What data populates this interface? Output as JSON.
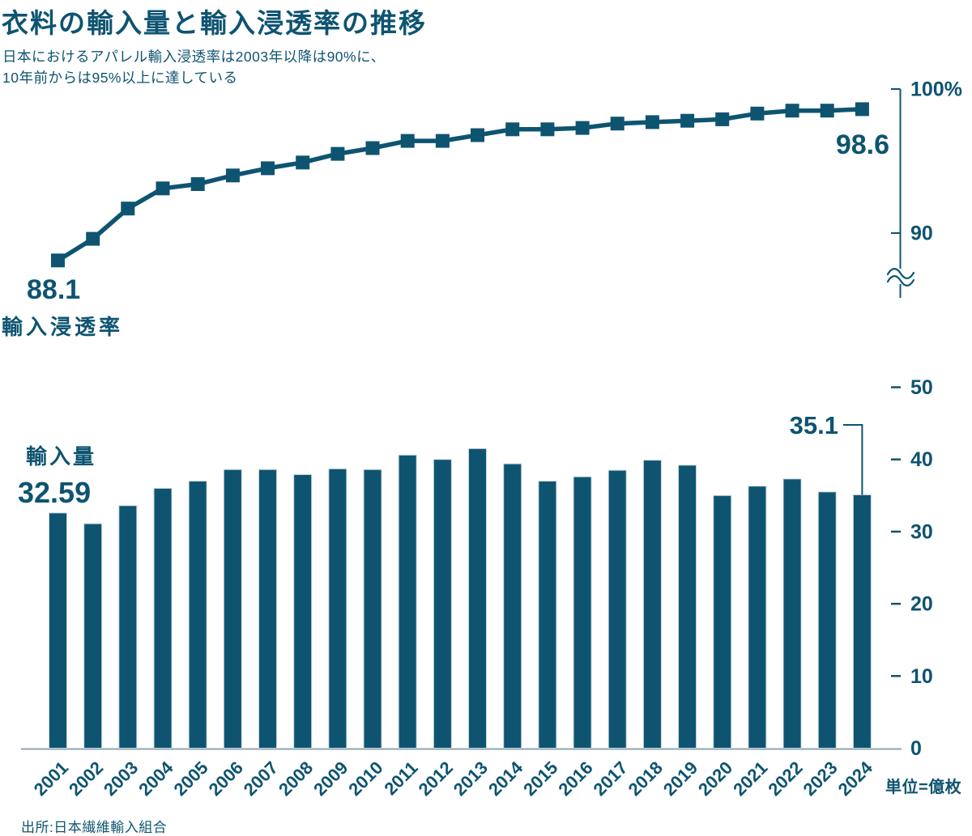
{
  "header": {
    "title": "衣料の輸入量と輸入浸透率の推移",
    "subtitle_line1": "日本におけるアパレル輸入浸透率は2003年以降は90%に、",
    "subtitle_line2": "10年前からは95%以上に達している"
  },
  "colors": {
    "primary": "#0E5471",
    "axis_light": "#8CA6B2",
    "bar_outline": "#C9D8E0",
    "background": "#FFFFFF"
  },
  "line_chart": {
    "series_label": "輸入浸透率",
    "first_value_label": "88.1",
    "last_value_label": "98.6",
    "axis_top_label": "100%",
    "axis_mid_label": "90"
  },
  "bar_chart": {
    "series_label": "輸入量",
    "first_value_label": "32.59",
    "last_value_label": "35.1",
    "unit_label": "単位=億枚"
  },
  "source_note": "出所:日本繊維輸入組合",
  "chart_data": [
    {
      "type": "line",
      "name": "輸入浸透率",
      "unit": "%",
      "marker": "square",
      "x": [
        2001,
        2002,
        2003,
        2004,
        2005,
        2006,
        2007,
        2008,
        2009,
        2010,
        2011,
        2012,
        2013,
        2014,
        2015,
        2016,
        2017,
        2018,
        2019,
        2020,
        2021,
        2022,
        2023,
        2024
      ],
      "values": [
        88.1,
        89.6,
        91.7,
        93.1,
        93.4,
        94.0,
        94.5,
        94.9,
        95.5,
        95.9,
        96.4,
        96.4,
        96.8,
        97.2,
        97.2,
        97.3,
        97.6,
        97.7,
        97.8,
        97.9,
        98.3,
        98.5,
        98.5,
        98.6
      ],
      "first_point_label": "88.1",
      "last_point_label": "98.6",
      "axis": {
        "side": "right",
        "ticks": [
          {
            "value": 100,
            "label": "100%"
          },
          {
            "value": 90,
            "label": "90"
          }
        ],
        "axis_break": true
      }
    },
    {
      "type": "bar",
      "name": "輸入量",
      "unit": "億枚",
      "categories": [
        2001,
        2002,
        2003,
        2004,
        2005,
        2006,
        2007,
        2008,
        2009,
        2010,
        2011,
        2012,
        2013,
        2014,
        2015,
        2016,
        2017,
        2018,
        2019,
        2020,
        2021,
        2022,
        2023,
        2024
      ],
      "values": [
        32.59,
        31.1,
        33.6,
        36.0,
        37.0,
        38.6,
        38.6,
        37.9,
        38.7,
        38.6,
        40.6,
        40.0,
        41.5,
        39.4,
        37.0,
        37.6,
        38.5,
        39.9,
        39.2,
        35.0,
        36.3,
        37.3,
        35.5,
        35.1
      ],
      "first_bar_label": "32.59",
      "last_bar_label": "35.1",
      "ylim": [
        0,
        50
      ],
      "y_ticks": [
        50,
        40,
        30,
        20,
        10,
        0
      ],
      "grid": false,
      "unit_label": "単位=億枚"
    }
  ]
}
